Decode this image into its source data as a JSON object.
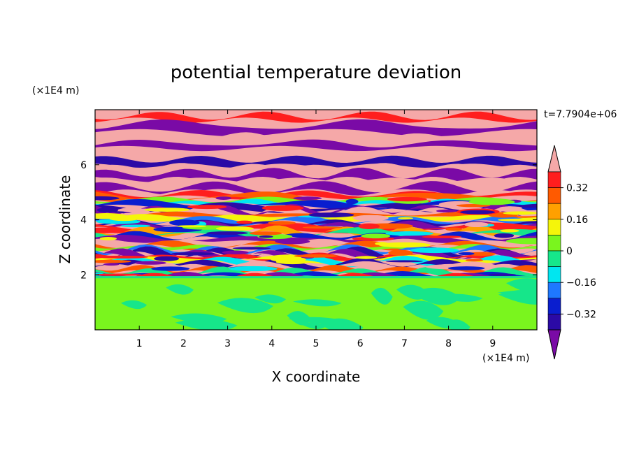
{
  "chart_data": {
    "type": "heatmap",
    "title": "potential temperature deviation",
    "xlabel": "X coordinate",
    "ylabel": "Z coordinate",
    "x_unit": "(×1E4 m)",
    "y_unit": "(×1E4 m)",
    "time_label": "t=7.7904e+06",
    "xlim": [
      0,
      10
    ],
    "ylim": [
      0,
      8
    ],
    "x_ticks": [
      "1",
      "2",
      "3",
      "4",
      "5",
      "6",
      "7",
      "8",
      "9"
    ],
    "y_ticks": [
      "2",
      "4",
      "6"
    ],
    "grid": false,
    "colorbar": {
      "placement": "right",
      "levels": [
        -0.4,
        -0.32,
        -0.24,
        -0.16,
        -0.08,
        0,
        0.08,
        0.16,
        0.24,
        0.32,
        0.4
      ],
      "colors": [
        "#7a0aa6",
        "#2b0aa6",
        "#0a1ecf",
        "#1e78ff",
        "#00e6f0",
        "#16e68a",
        "#7af51e",
        "#f5f50a",
        "#ffa000",
        "#ff5a00",
        "#ff1e1e",
        "#f5a8a8"
      ],
      "tick_labels": [
        "0.32",
        "0.16",
        "0",
        "−0.16",
        "−0.32"
      ],
      "extend": "both"
    },
    "regions": [
      {
        "z_range": [
          0,
          1.9
        ],
        "description_values": [
          -0.08,
          0.08
        ]
      },
      {
        "z_range": [
          1.9,
          5.0
        ],
        "description_values": [
          -0.4,
          0.4
        ]
      },
      {
        "z_range": [
          5.0,
          8.0
        ],
        "description_values": [
          -0.4,
          0.4
        ]
      }
    ]
  }
}
